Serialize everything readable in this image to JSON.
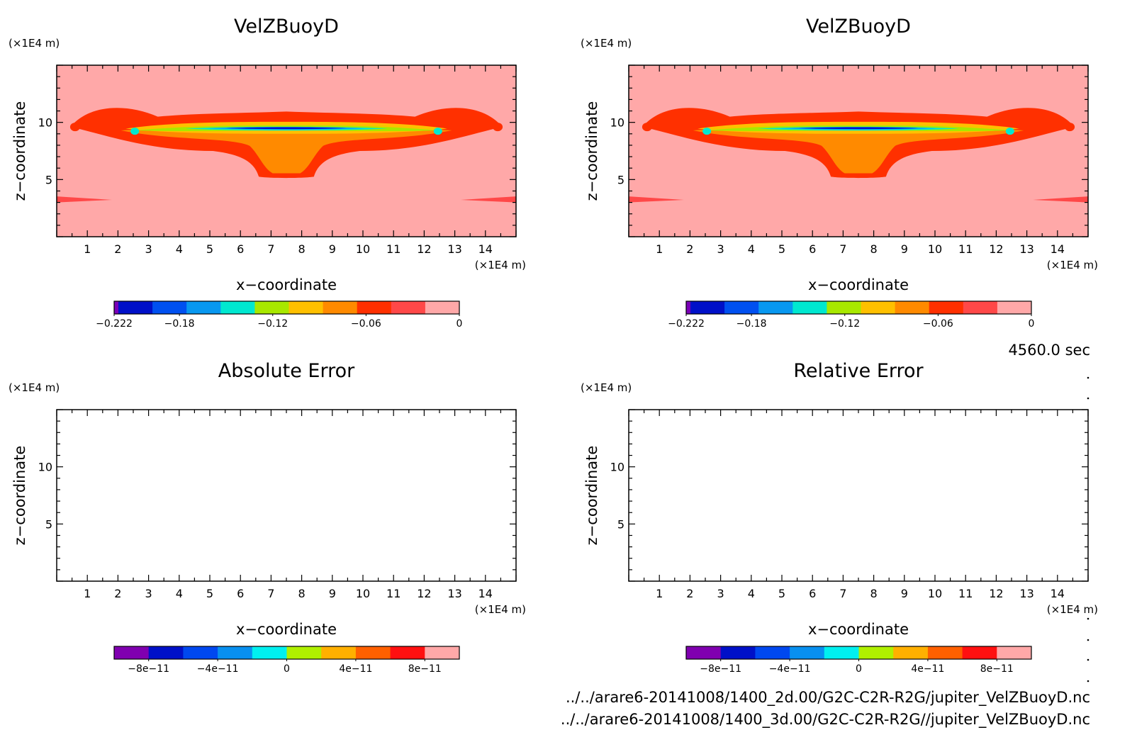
{
  "time_label": "4560.0 sec",
  "file_paths": [
    "../../arare6-20141008/1400_2d.00/G2C-C2R-R2G/jupiter_VelZBuoyD.nc",
    "../../arare6-20141008/1400_3d.00/G2C-C2R-R2G//jupiter_VelZBuoyD.nc"
  ],
  "chart_data": [
    {
      "type": "heatmap",
      "title": "VelZBuoyD",
      "xlabel": "x-coordinate",
      "ylabel": "z-coordinate",
      "x_unit": "(×1E4 m)",
      "y_unit": "(×1E4 m)",
      "xlim": [
        0,
        15
      ],
      "ylim": [
        0,
        15
      ],
      "x_ticks": [
        "1",
        "2",
        "3",
        "4",
        "5",
        "6",
        "7",
        "8",
        "9",
        "10",
        "11",
        "12",
        "13",
        "14"
      ],
      "y_ticks": [
        "5",
        "10"
      ],
      "colorbar": {
        "range": [
          -0.222,
          0
        ],
        "tick_labels": [
          "-0.222",
          "-0.18",
          "-0.12",
          "-0.06",
          "0"
        ],
        "colors": [
          "#7a00b8",
          "#0010c8",
          "#0050f0",
          "#0898f0",
          "#00e8d0",
          "#a8e800",
          "#ffc000",
          "#ff8a00",
          "#ff3000",
          "#ff4848",
          "#ffa8a8"
        ]
      }
    },
    {
      "type": "heatmap",
      "title": "VelZBuoyD",
      "xlabel": "x-coordinate",
      "ylabel": "z-coordinate",
      "x_unit": "(×1E4 m)",
      "y_unit": "(×1E4 m)",
      "xlim": [
        0,
        15
      ],
      "ylim": [
        0,
        15
      ],
      "x_ticks": [
        "1",
        "2",
        "3",
        "4",
        "5",
        "6",
        "7",
        "8",
        "9",
        "10",
        "11",
        "12",
        "13",
        "14"
      ],
      "y_ticks": [
        "5",
        "10"
      ],
      "colorbar": {
        "range": [
          -0.222,
          0
        ],
        "tick_labels": [
          "-0.222",
          "-0.18",
          "-0.12",
          "-0.06",
          "0"
        ],
        "colors": [
          "#7a00b8",
          "#0010c8",
          "#0050f0",
          "#0898f0",
          "#00e8d0",
          "#a8e800",
          "#ffc000",
          "#ff8a00",
          "#ff3000",
          "#ff4848",
          "#ffa8a8"
        ]
      }
    },
    {
      "type": "heatmap",
      "title": "Absolute Error",
      "xlabel": "x-coordinate",
      "ylabel": "z-coordinate",
      "x_unit": "(×1E4 m)",
      "y_unit": "(×1E4 m)",
      "xlim": [
        0,
        15
      ],
      "ylim": [
        0,
        15
      ],
      "x_ticks": [
        "1",
        "2",
        "3",
        "4",
        "5",
        "6",
        "7",
        "8",
        "9",
        "10",
        "11",
        "12",
        "13",
        "14"
      ],
      "y_ticks": [
        "5",
        "10"
      ],
      "colorbar": {
        "range": [
          -1e-10,
          1e-10
        ],
        "tick_labels": [
          "-8e-11",
          "-4e-11",
          "0",
          "4e-11",
          "8e-11"
        ],
        "colors": [
          "#8000b0",
          "#0010c8",
          "#0048f0",
          "#0890f0",
          "#00f0f0",
          "#b0f000",
          "#ffb000",
          "#ff6000",
          "#ff1010",
          "#ffa8a8"
        ]
      }
    },
    {
      "type": "heatmap",
      "title": "Relative Error",
      "xlabel": "x-coordinate",
      "ylabel": "z-coordinate",
      "x_unit": "(×1E4 m)",
      "y_unit": "(×1E4 m)",
      "xlim": [
        0,
        15
      ],
      "ylim": [
        0,
        15
      ],
      "x_ticks": [
        "1",
        "2",
        "3",
        "4",
        "5",
        "6",
        "7",
        "8",
        "9",
        "10",
        "11",
        "12",
        "13",
        "14"
      ],
      "y_ticks": [
        "5",
        "10"
      ],
      "colorbar": {
        "range": [
          -1e-10,
          1e-10
        ],
        "tick_labels": [
          "-8e-11",
          "-4e-11",
          "0",
          "4e-11",
          "8e-11"
        ],
        "colors": [
          "#8000b0",
          "#0010c8",
          "#0048f0",
          "#0890f0",
          "#00f0f0",
          "#b0f000",
          "#ffb000",
          "#ff6000",
          "#ff1010",
          "#ffa8a8"
        ]
      }
    }
  ]
}
